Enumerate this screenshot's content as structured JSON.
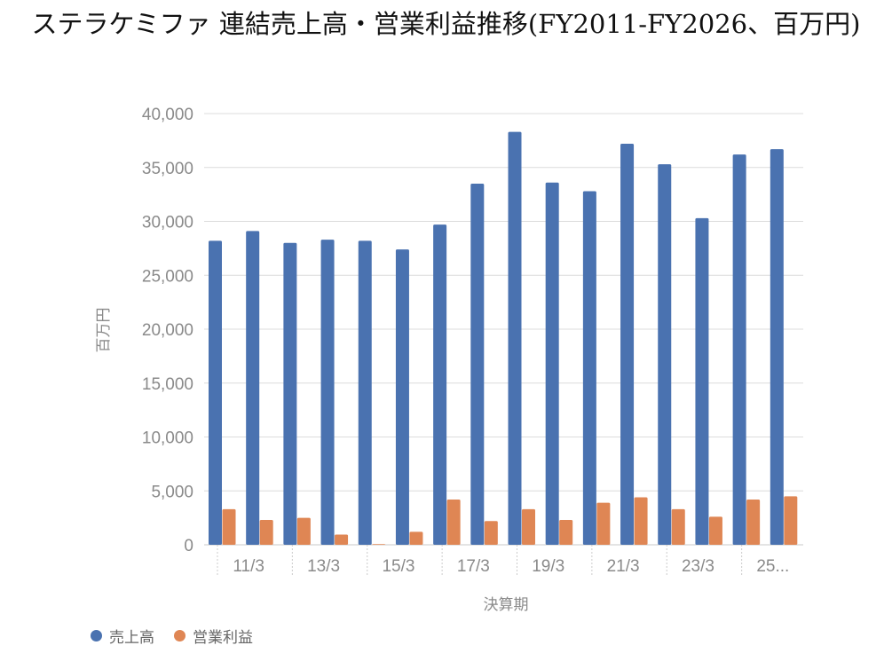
{
  "chart_data": {
    "type": "bar",
    "title": "ステラケミファ 連結売上高・営業利益推移(FY2011-FY2026、百万円)",
    "xlabel": "決算期",
    "ylabel": "百万円",
    "ylim": [
      0,
      40000
    ],
    "yticks": [
      "0",
      "5,000",
      "10,000",
      "15,000",
      "20,000",
      "25,000",
      "30,000",
      "35,000",
      "40,000"
    ],
    "tick_labels": [
      "11/3",
      "13/3",
      "15/3",
      "17/3",
      "19/3",
      "21/3",
      "23/3",
      "25..."
    ],
    "categories": [
      "11/3",
      "12/3",
      "13/3",
      "14/3",
      "15/3",
      "16/3",
      "17/3",
      "18/3",
      "19/3",
      "20/3",
      "21/3",
      "22/3",
      "23/3",
      "24/3",
      "25/3",
      "26/3"
    ],
    "series": [
      {
        "name": "売上高",
        "color": "#4a72b0",
        "values": [
          28200,
          29100,
          28000,
          28300,
          28200,
          27400,
          29700,
          33500,
          38300,
          33600,
          32800,
          37200,
          35300,
          30300,
          36200,
          36700
        ]
      },
      {
        "name": "営業利益",
        "color": "#df8654",
        "values": [
          3300,
          2300,
          2500,
          950,
          0,
          1200,
          4200,
          2200,
          3300,
          2300,
          3900,
          4400,
          3300,
          2600,
          4200,
          4500
        ]
      }
    ],
    "grid": true,
    "legend": "bottom-left"
  }
}
